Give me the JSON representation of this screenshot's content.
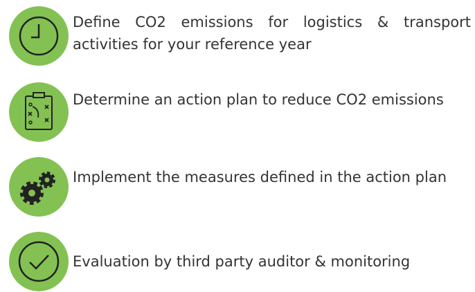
{
  "steps": [
    {
      "text": "Define CO2 emissions for logistics & transport activities for your reference year"
    },
    {
      "text": "Determine an action plan to reduce CO2 emissions"
    },
    {
      "text": "Implement the measures defined in the action plan"
    },
    {
      "text": "Evaluation by third party auditor & monitoring"
    }
  ]
}
